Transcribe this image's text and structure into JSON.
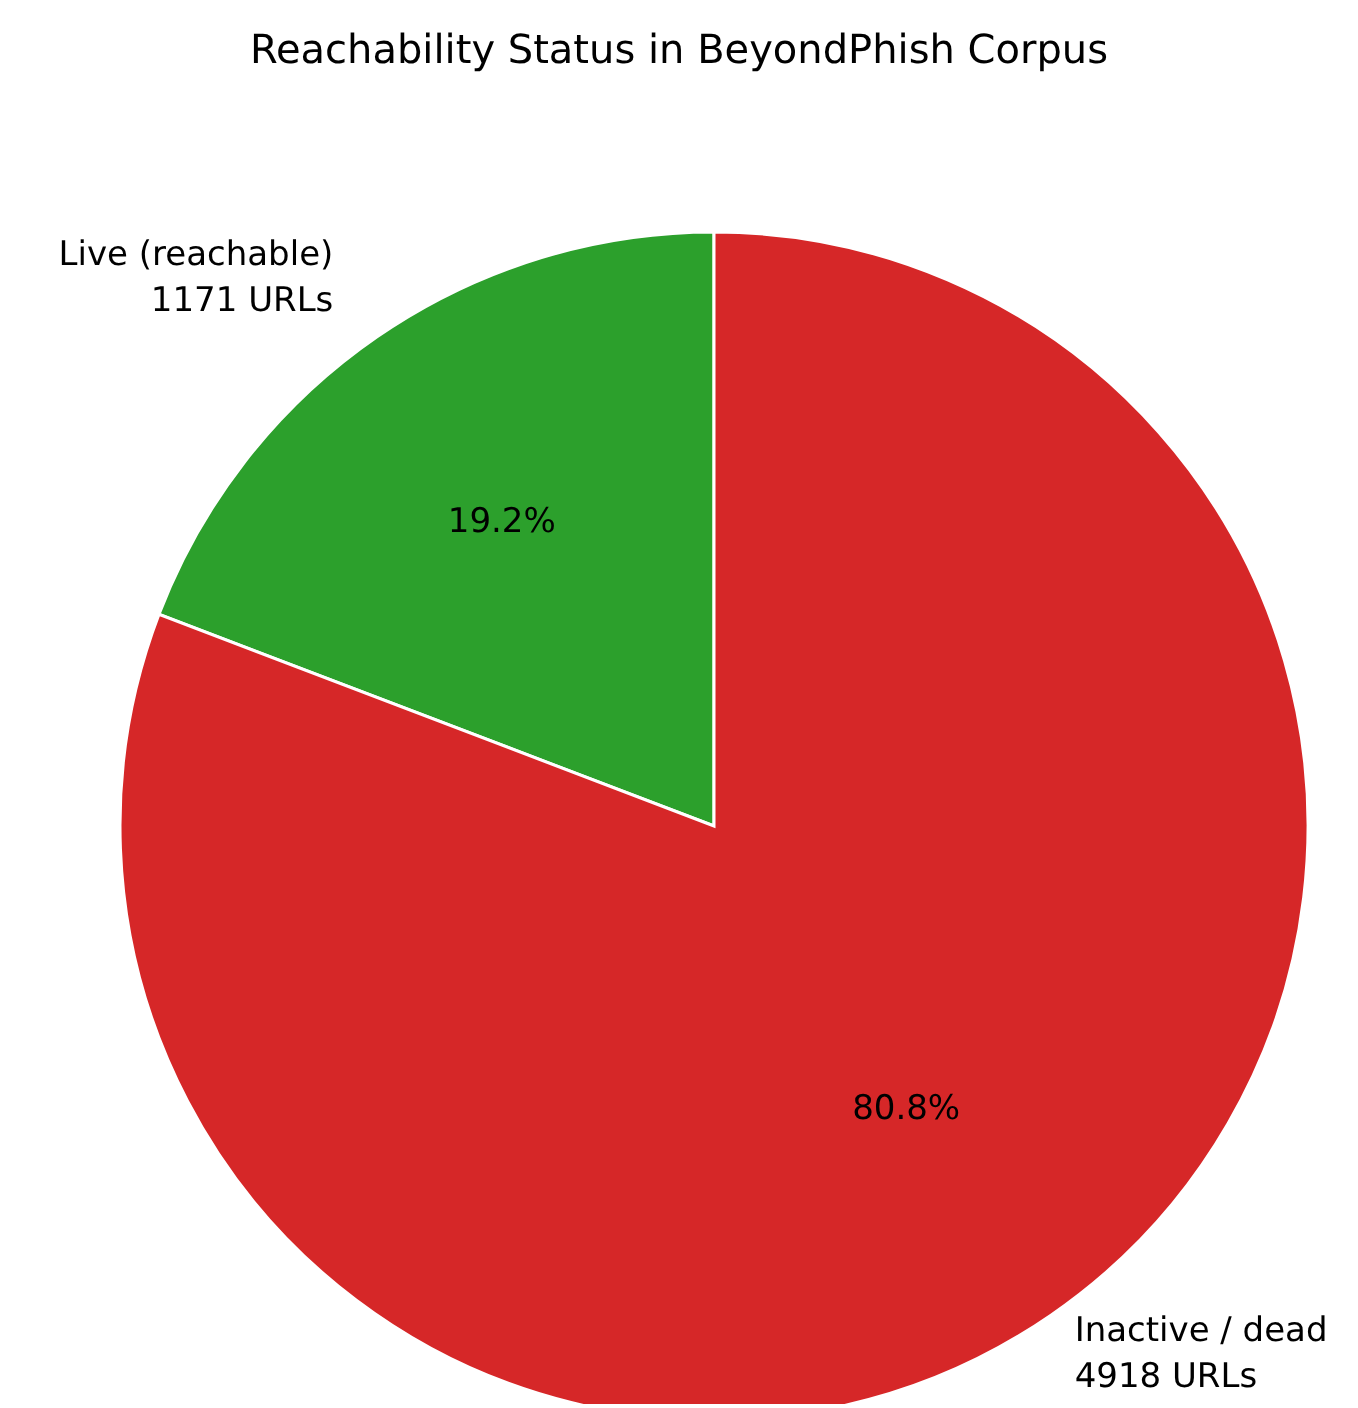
{
  "chart_data": {
    "type": "pie",
    "title": "Reachability Status in BeyondPhish Corpus",
    "categories": [
      "Live (reachable)\n1171 URLs",
      "Inactive / dead\n4918 URLs"
    ],
    "values": [
      19.2,
      80.8
    ],
    "colors": [
      "#2ca02c",
      "#d62728"
    ],
    "value_labels": [
      "19.2%",
      "80.8%"
    ],
    "legend": false
  }
}
